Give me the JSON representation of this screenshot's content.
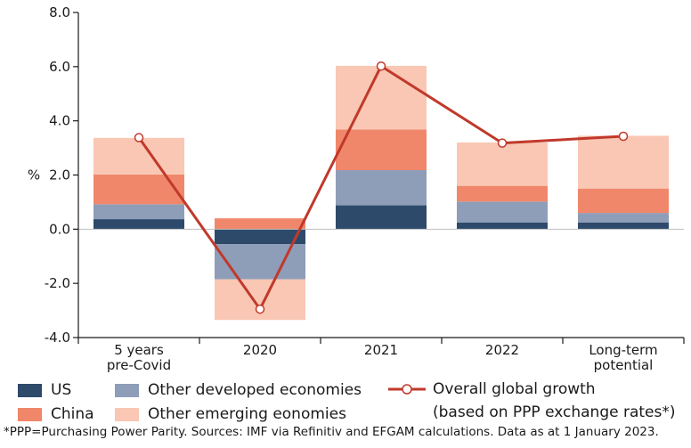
{
  "chart_data": {
    "type": "stacked-bar-with-line",
    "ylabel": "%",
    "ylim": [
      -4.0,
      8.0
    ],
    "yticks": [
      "8.0",
      "6.0",
      "4.0",
      "2.0",
      "0.0",
      "-2.0",
      "-4.0"
    ],
    "ytick_values": [
      8,
      6,
      4,
      2,
      0,
      -2,
      -4
    ],
    "categories": [
      "5 years pre-Covid",
      "2020",
      "2021",
      "2022",
      "Long-term potential"
    ],
    "category_lines": [
      [
        "5 years",
        "pre-Covid"
      ],
      [
        "2020"
      ],
      [
        "2021"
      ],
      [
        "2022"
      ],
      [
        "Long-term",
        "potential"
      ]
    ],
    "series": [
      {
        "name": "US",
        "color": "#2d4a6b",
        "values": [
          0.37,
          -0.55,
          0.88,
          0.25,
          0.25
        ]
      },
      {
        "name": "Other developed economies",
        "color": "#8e9db8",
        "values": [
          0.55,
          -1.3,
          1.3,
          0.77,
          0.35
        ]
      },
      {
        "name": "China",
        "color": "#f0876a",
        "values": [
          1.1,
          0.4,
          1.5,
          0.58,
          0.9
        ]
      },
      {
        "name": "Other emerging eonomies",
        "color": "#f9c7b3",
        "values": [
          1.35,
          -1.5,
          2.35,
          1.6,
          1.95
        ]
      }
    ],
    "line": {
      "name": "Overall global growth (based on PPP exchange rates*)",
      "color": "#c0392b",
      "values": [
        3.38,
        -2.95,
        6.02,
        3.18,
        3.43
      ]
    }
  },
  "legend": {
    "us": "US",
    "other_developed": "Other developed economies",
    "china": "China",
    "other_emerging": "Other emerging eonomies",
    "line_line1": "Overall global growth",
    "line_line2": "(based on PPP exchange rates*)"
  },
  "footnote": "*PPP=Purchasing Power Parity. Sources: IMF via Refinitiv and EFGAM calculations. Data as at 1 January 2023."
}
